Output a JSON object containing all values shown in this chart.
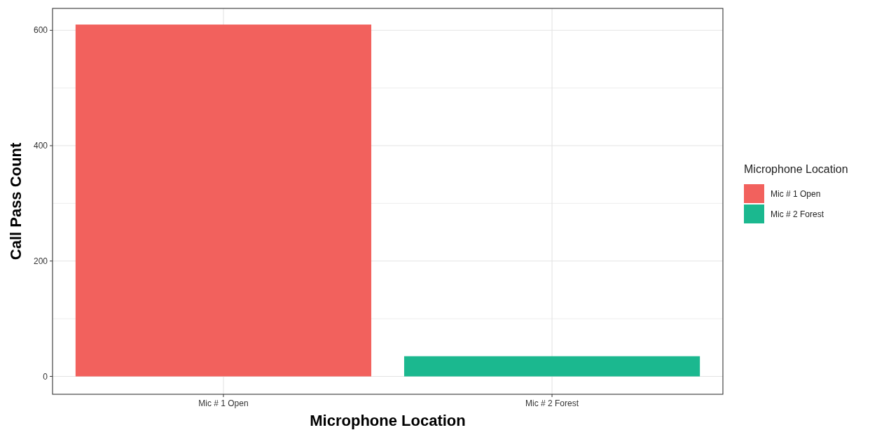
{
  "chart_data": {
    "type": "bar",
    "xlabel": "Microphone Location",
    "ylabel": "Call Pass Count",
    "legend_title": "Microphone Location",
    "categories": [
      "Mic # 1 Open",
      "Mic # 2 Forest"
    ],
    "series": [
      {
        "name": "Mic # 1 Open",
        "color": "#f2615d",
        "values": [
          610,
          null
        ]
      },
      {
        "name": "Mic # 2 Forest",
        "color": "#1bb88f",
        "values": [
          null,
          35
        ]
      }
    ],
    "ylim": [
      -31,
      638
    ],
    "yticks": [
      0,
      {
        "value": 100,
        "label": null
      },
      200,
      {
        "value": 300,
        "label": null
      },
      400,
      {
        "value": 500,
        "label": null
      },
      600
    ],
    "grid": true,
    "legend": "right"
  }
}
